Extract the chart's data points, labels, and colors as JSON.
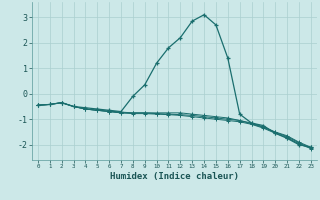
{
  "xlabel": "Humidex (Indice chaleur)",
  "xlim": [
    -0.5,
    23.5
  ],
  "ylim": [
    -2.6,
    3.6
  ],
  "yticks": [
    -2,
    -1,
    0,
    1,
    2,
    3
  ],
  "xticks": [
    0,
    1,
    2,
    3,
    4,
    5,
    6,
    7,
    8,
    9,
    10,
    11,
    12,
    13,
    14,
    15,
    16,
    17,
    18,
    19,
    20,
    21,
    22,
    23
  ],
  "background_color": "#cce8e8",
  "grid_color": "#aacfcf",
  "line_color": "#1a6e6e",
  "line1_x": [
    0,
    1,
    2,
    3,
    4,
    5,
    6,
    7,
    8,
    9,
    10,
    11,
    12,
    13,
    14,
    15,
    16,
    17,
    18,
    19,
    20,
    21,
    22,
    23
  ],
  "line1_y": [
    -0.45,
    -0.42,
    -0.35,
    -0.5,
    -0.55,
    -0.6,
    -0.65,
    -0.7,
    -0.1,
    0.35,
    1.2,
    1.8,
    2.2,
    2.85,
    3.1,
    2.7,
    1.4,
    -0.8,
    -1.15,
    -1.25,
    -1.55,
    -1.75,
    -2.0,
    -2.1
  ],
  "line2_x": [
    0,
    1,
    2,
    3,
    4,
    5,
    6,
    7,
    8,
    9,
    10,
    11,
    12,
    13,
    14,
    15,
    16,
    17,
    18,
    19,
    20,
    21,
    22,
    23
  ],
  "line2_y": [
    -0.45,
    -0.42,
    -0.35,
    -0.5,
    -0.6,
    -0.65,
    -0.7,
    -0.75,
    -0.75,
    -0.75,
    -0.75,
    -0.75,
    -0.75,
    -0.8,
    -0.85,
    -0.9,
    -0.95,
    -1.05,
    -1.15,
    -1.3,
    -1.5,
    -1.65,
    -1.9,
    -2.1
  ],
  "line3_x": [
    0,
    1,
    2,
    3,
    4,
    5,
    6,
    7,
    8,
    9,
    10,
    11,
    12,
    13,
    14,
    15,
    16,
    17,
    18,
    19,
    20,
    21,
    22,
    23
  ],
  "line3_y": [
    -0.45,
    -0.42,
    -0.35,
    -0.5,
    -0.6,
    -0.65,
    -0.7,
    -0.75,
    -0.78,
    -0.78,
    -0.8,
    -0.82,
    -0.85,
    -0.9,
    -0.95,
    -1.0,
    -1.05,
    -1.1,
    -1.2,
    -1.35,
    -1.55,
    -1.72,
    -1.97,
    -2.15
  ],
  "line4_x": [
    0,
    1,
    2,
    3,
    4,
    5,
    6,
    7,
    8,
    9,
    10,
    11,
    12,
    13,
    14,
    15,
    16,
    17,
    18,
    19,
    20,
    21,
    22,
    23
  ],
  "line4_y": [
    -0.45,
    -0.42,
    -0.35,
    -0.5,
    -0.6,
    -0.65,
    -0.68,
    -0.72,
    -0.75,
    -0.75,
    -0.78,
    -0.8,
    -0.82,
    -0.85,
    -0.9,
    -0.95,
    -1.0,
    -1.05,
    -1.18,
    -1.32,
    -1.52,
    -1.68,
    -1.93,
    -2.13
  ]
}
